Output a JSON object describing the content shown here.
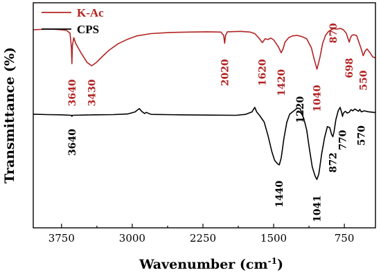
{
  "chart_data": {
    "type": "line",
    "title": "",
    "xlabel": "Wavenumber (cm",
    "xlabel_sup": "-1",
    "xlabel_suffix": ")",
    "ylabel": "Transmittance (%)",
    "xlim": [
      4050,
      420
    ],
    "ylim": [
      0,
      100
    ],
    "x_ticks": [
      3750,
      3000,
      2250,
      1500,
      750
    ],
    "x_tick_labels": [
      "3750",
      "3000",
      "2250",
      "1500",
      "750"
    ],
    "grid": false,
    "legend_position": "top-left",
    "series": [
      {
        "name": "K-Ac",
        "color": "#b22222",
        "points": [
          [
            4050,
            88.0
          ],
          [
            3900,
            88.3
          ],
          [
            3800,
            88.2
          ],
          [
            3700,
            87.8
          ],
          [
            3660,
            86.5
          ],
          [
            3645,
            80.0
          ],
          [
            3640,
            73.0
          ],
          [
            3635,
            81.0
          ],
          [
            3620,
            84.5
          ],
          [
            3600,
            82.0
          ],
          [
            3540,
            77.5
          ],
          [
            3480,
            73.5
          ],
          [
            3430,
            72.0
          ],
          [
            3380,
            73.5
          ],
          [
            3320,
            76.0
          ],
          [
            3250,
            78.8
          ],
          [
            3150,
            81.8
          ],
          [
            3050,
            83.8
          ],
          [
            2950,
            85.3
          ],
          [
            2800,
            86.3
          ],
          [
            2600,
            86.8
          ],
          [
            2400,
            87.0
          ],
          [
            2200,
            87.1
          ],
          [
            2060,
            87.0
          ],
          [
            2030,
            85.5
          ],
          [
            2020,
            82.0
          ],
          [
            2010,
            85.5
          ],
          [
            1990,
            87.1
          ],
          [
            1850,
            87.3
          ],
          [
            1750,
            87.0
          ],
          [
            1700,
            86.3
          ],
          [
            1660,
            84.5
          ],
          [
            1620,
            82.3
          ],
          [
            1590,
            84.0
          ],
          [
            1560,
            83.7
          ],
          [
            1530,
            84.3
          ],
          [
            1500,
            83.5
          ],
          [
            1450,
            80.5
          ],
          [
            1420,
            77.8
          ],
          [
            1400,
            79.5
          ],
          [
            1380,
            82.5
          ],
          [
            1340,
            84.5
          ],
          [
            1300,
            85.3
          ],
          [
            1250,
            85.5
          ],
          [
            1200,
            85.0
          ],
          [
            1150,
            84.0
          ],
          [
            1100,
            80.0
          ],
          [
            1070,
            75.0
          ],
          [
            1040,
            70.5
          ],
          [
            1010,
            75.5
          ],
          [
            980,
            82.0
          ],
          [
            950,
            85.5
          ],
          [
            920,
            87.2
          ],
          [
            870,
            88.5
          ],
          [
            830,
            88.3
          ],
          [
            790,
            88.6
          ],
          [
            760,
            88.0
          ],
          [
            730,
            86.5
          ],
          [
            710,
            84.0
          ],
          [
            698,
            82.5
          ],
          [
            685,
            84.5
          ],
          [
            670,
            85.5
          ],
          [
            650,
            85.8
          ],
          [
            620,
            85.4
          ],
          [
            600,
            83.0
          ],
          [
            575,
            80.0
          ],
          [
            550,
            76.5
          ],
          [
            530,
            78.5
          ],
          [
            510,
            79.5
          ],
          [
            480,
            78.0
          ],
          [
            450,
            76.0
          ],
          [
            420,
            75.5
          ]
        ]
      },
      {
        "name": "CPS",
        "color": "#000000",
        "points": [
          [
            4050,
            50.5
          ],
          [
            3900,
            50.3
          ],
          [
            3750,
            50.2
          ],
          [
            3645,
            50.0
          ],
          [
            3640,
            49.5
          ],
          [
            3635,
            50.0
          ],
          [
            3400,
            50.2
          ],
          [
            3200,
            50.3
          ],
          [
            3050,
            50.6
          ],
          [
            2970,
            51.5
          ],
          [
            2925,
            53.0
          ],
          [
            2900,
            51.8
          ],
          [
            2870,
            50.8
          ],
          [
            2850,
            51.3
          ],
          [
            2800,
            50.4
          ],
          [
            2500,
            50.2
          ],
          [
            2200,
            50.1
          ],
          [
            1900,
            50.0
          ],
          [
            1800,
            50.4
          ],
          [
            1730,
            51.5
          ],
          [
            1700,
            53.5
          ],
          [
            1680,
            51.5
          ],
          [
            1650,
            50.0
          ],
          [
            1600,
            47.0
          ],
          [
            1560,
            41.0
          ],
          [
            1520,
            34.0
          ],
          [
            1490,
            30.0
          ],
          [
            1460,
            28.5
          ],
          [
            1440,
            28.0
          ],
          [
            1420,
            31.0
          ],
          [
            1390,
            40.0
          ],
          [
            1360,
            47.0
          ],
          [
            1330,
            50.5
          ],
          [
            1300,
            51.5
          ],
          [
            1270,
            52.5
          ],
          [
            1250,
            53.2
          ],
          [
            1220,
            53.0
          ],
          [
            1200,
            50.5
          ],
          [
            1180,
            48.5
          ],
          [
            1150,
            43.5
          ],
          [
            1120,
            35.0
          ],
          [
            1090,
            27.0
          ],
          [
            1060,
            23.0
          ],
          [
            1041,
            21.5
          ],
          [
            1020,
            24.0
          ],
          [
            990,
            33.0
          ],
          [
            960,
            40.0
          ],
          [
            930,
            45.0
          ],
          [
            905,
            44.5
          ],
          [
            885,
            41.5
          ],
          [
            872,
            40.5
          ],
          [
            860,
            42.5
          ],
          [
            840,
            48.0
          ],
          [
            815,
            52.0
          ],
          [
            795,
            53.5
          ],
          [
            780,
            51.5
          ],
          [
            770,
            49.5
          ],
          [
            760,
            51.0
          ],
          [
            740,
            51.8
          ],
          [
            720,
            51.0
          ],
          [
            700,
            51.3
          ],
          [
            680,
            52.5
          ],
          [
            660,
            52.0
          ],
          [
            640,
            52.8
          ],
          [
            620,
            52.3
          ],
          [
            600,
            51.8
          ],
          [
            585,
            52.6
          ],
          [
            570,
            51.5
          ],
          [
            540,
            52.0
          ],
          [
            500,
            51.6
          ],
          [
            460,
            51.4
          ],
          [
            420,
            51.2
          ]
        ]
      }
    ],
    "annotations": [
      {
        "text": "3640",
        "series": "K-Ac",
        "x": 3640,
        "y": 66.0
      },
      {
        "text": "3430",
        "series": "K-Ac",
        "x": 3430,
        "y": 66.0
      },
      {
        "text": "2020",
        "series": "K-Ac",
        "x": 2020,
        "y": 75.0
      },
      {
        "text": "1620",
        "series": "K-Ac",
        "x": 1620,
        "y": 75.0
      },
      {
        "text": "1420",
        "series": "K-Ac",
        "x": 1420,
        "y": 70.5
      },
      {
        "text": "1040",
        "series": "K-Ac",
        "x": 1040,
        "y": 63.5
      },
      {
        "text": "870",
        "series": "K-Ac",
        "x": 870,
        "y": 91.0
      },
      {
        "text": "698",
        "series": "K-Ac",
        "x": 698,
        "y": 75.5
      },
      {
        "text": "550",
        "series": "K-Ac",
        "x": 550,
        "y": 70.0
      },
      {
        "text": "3640",
        "series": "CPS",
        "x": 3640,
        "y": 44.0
      },
      {
        "text": "1440",
        "series": "CPS",
        "x": 1440,
        "y": 21.0
      },
      {
        "text": "1220",
        "series": "CPS",
        "x": 1220,
        "y": 58.5
      },
      {
        "text": "1041",
        "series": "CPS",
        "x": 1041,
        "y": 14.5
      },
      {
        "text": "872",
        "series": "CPS",
        "x": 872,
        "y": 33.5
      },
      {
        "text": "770",
        "series": "CPS",
        "x": 770,
        "y": 43.5
      },
      {
        "text": "570",
        "series": "CPS",
        "x": 570,
        "y": 45.5
      }
    ]
  }
}
